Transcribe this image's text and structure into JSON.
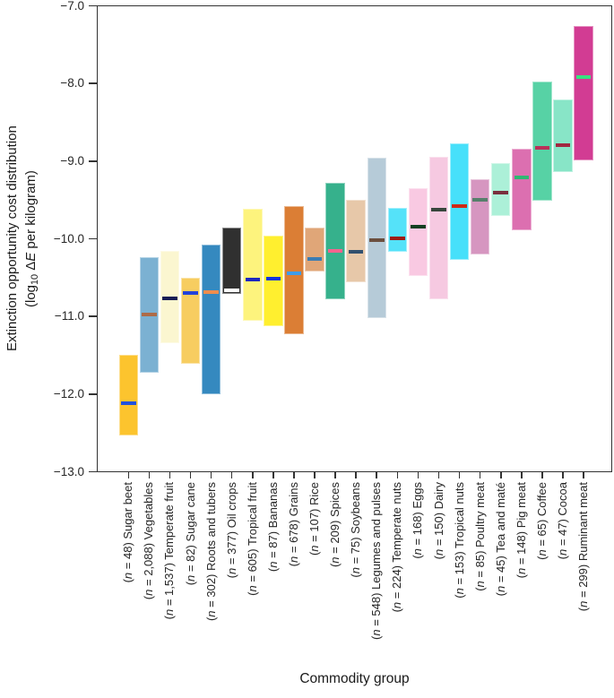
{
  "axes": {
    "x_title": "Commodity group",
    "y_title_line1": "Extinction opportunity cost distribution",
    "y_title_line2": {
      "pre": "(log",
      "sub": "10",
      "delta": " Δ",
      "e": "E",
      "post": " per kilogram)"
    }
  },
  "chart_data": {
    "type": "bar",
    "subtype": "floating-range-bars-with-median",
    "title": "",
    "xlabel": "Commodity group",
    "ylabel": "Extinction opportunity cost distribution (log10 ΔE per kilogram)",
    "ylim": [
      -13.0,
      -7.0
    ],
    "grid": false,
    "legend": "none",
    "yticks": {
      "values": [
        -7.0,
        -8.0,
        -9.0,
        -10.0,
        -11.0,
        -12.0,
        -13.0
      ],
      "labels": [
        "−7.0",
        "−8.0",
        "−9.0",
        "−10.0",
        "−11.0",
        "−12.0",
        "−13.0"
      ]
    },
    "bars": [
      {
        "name": "Sugar beet",
        "n": "48",
        "low": -12.53,
        "high": -11.49,
        "median": -12.12,
        "fill": "#FCC42E",
        "median_color": "#2152DD"
      },
      {
        "name": "Vegetables",
        "n": "2,088",
        "low": -11.72,
        "high": -10.24,
        "median": -10.98,
        "fill": "#7BB1D2",
        "median_color": "#AE6B47"
      },
      {
        "name": "Temperate fruit",
        "n": "1,537",
        "low": -11.35,
        "high": -10.16,
        "median": -10.77,
        "fill": "#FBF6D0",
        "median_color": "#171C55"
      },
      {
        "name": "Sugar cane",
        "n": "82",
        "low": -11.61,
        "high": -10.5,
        "median": -10.7,
        "fill": "#F7CD60",
        "median_color": "#2342DA"
      },
      {
        "name": "Roots and tubers",
        "n": "302",
        "low": -12.0,
        "high": -10.07,
        "median": -10.69,
        "fill": "#3589BF",
        "median_color": "#EE8D4D"
      },
      {
        "name": "Oil crops",
        "n": "377",
        "low": -10.71,
        "high": -9.85,
        "median": -10.66,
        "fill": "#303030",
        "median_color": "#FFFFFF"
      },
      {
        "name": "Tropical fruit",
        "n": "605",
        "low": -11.06,
        "high": -9.61,
        "median": -10.53,
        "fill": "#FDF37D",
        "median_color": "#1C27BE"
      },
      {
        "name": "Bananas",
        "n": "87",
        "low": -11.13,
        "high": -9.96,
        "median": -10.51,
        "fill": "#FFEF2F",
        "median_color": "#1233DD"
      },
      {
        "name": "Grains",
        "n": "678",
        "low": -11.23,
        "high": -9.58,
        "median": -10.44,
        "fill": "#DB7E35",
        "median_color": "#3E9CE9"
      },
      {
        "name": "Rice",
        "n": "107",
        "low": -10.42,
        "high": -9.86,
        "median": -10.26,
        "fill": "#E0A678",
        "median_color": "#3B7CB3"
      },
      {
        "name": "Spices",
        "n": "209",
        "low": -10.78,
        "high": -9.28,
        "median": -10.16,
        "fill": "#36B18C",
        "median_color": "#F4648F"
      },
      {
        "name": "Soybeans",
        "n": "75",
        "low": -10.56,
        "high": -9.5,
        "median": -10.17,
        "fill": "#E7C8A9",
        "median_color": "#32506E"
      },
      {
        "name": "Legumes and pulses",
        "n": "548",
        "low": -11.02,
        "high": -8.95,
        "median": -10.02,
        "fill": "#B6CBD8",
        "median_color": "#6B4F3F"
      },
      {
        "name": "Temperate nuts",
        "n": "224",
        "low": -10.17,
        "high": -9.6,
        "median": -9.99,
        "fill": "#55E2F9",
        "median_color": "#9E1C12"
      },
      {
        "name": "Eggs",
        "n": "168",
        "low": -10.48,
        "high": -9.35,
        "median": -9.85,
        "fill": "#F9C9E2",
        "median_color": "#123F22"
      },
      {
        "name": "Dairy",
        "n": "150",
        "low": -10.78,
        "high": -8.94,
        "median": -9.62,
        "fill": "#F6C9E1",
        "median_color": "#37463C"
      },
      {
        "name": "Tropical nuts",
        "n": "153",
        "low": -10.27,
        "high": -8.77,
        "median": -9.58,
        "fill": "#47E0FA",
        "median_color": "#CE2A17"
      },
      {
        "name": "Poultry meat",
        "n": "85",
        "low": -10.2,
        "high": -9.23,
        "median": -9.5,
        "fill": "#D696C0",
        "median_color": "#567F6B"
      },
      {
        "name": "Tea and maté",
        "n": "45",
        "low": -9.71,
        "high": -9.03,
        "median": -9.41,
        "fill": "#ACF0D8",
        "median_color": "#7A2F3E"
      },
      {
        "name": "Pig meat",
        "n": "148",
        "low": -9.89,
        "high": -8.84,
        "median": -9.21,
        "fill": "#DC6FB0",
        "median_color": "#2EB873"
      },
      {
        "name": "Coffee",
        "n": "65",
        "low": -9.51,
        "high": -7.98,
        "median": -8.83,
        "fill": "#57D2A5",
        "median_color": "#BA3059"
      },
      {
        "name": "Cocoa",
        "n": "47",
        "low": -9.14,
        "high": -8.21,
        "median": -8.8,
        "fill": "#88E5C7",
        "median_color": "#A12740"
      },
      {
        "name": "Ruminant meat",
        "n": "299",
        "low": -8.99,
        "high": -7.26,
        "median": -7.92,
        "fill": "#D23C93",
        "median_color": "#38E081"
      }
    ]
  }
}
